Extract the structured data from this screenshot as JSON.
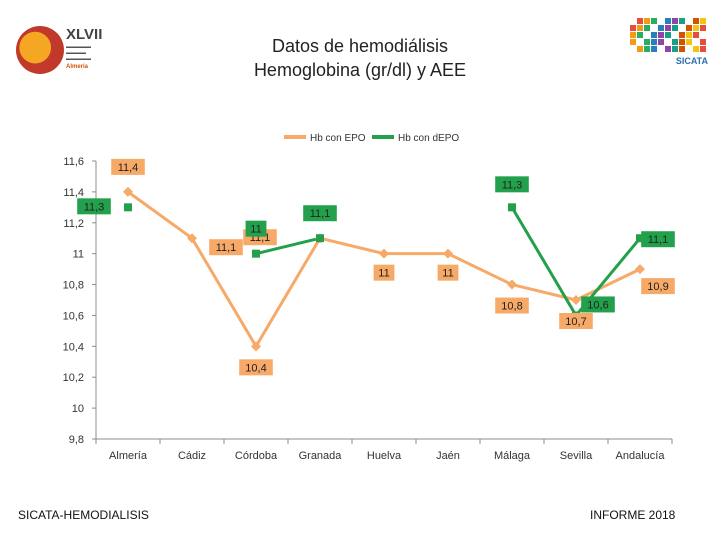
{
  "header": {
    "logo_left": {
      "roman": "XLVII",
      "city": "Almería"
    },
    "logo_right": {
      "brand": "SICATA"
    }
  },
  "footer": {
    "left": "SICATA-HEMODIALISIS",
    "right": "INFORME 2018"
  },
  "colors": {
    "series_epo": "#f7a968",
    "series_depo": "#22a04b"
  },
  "chart_data": {
    "type": "line",
    "title_lines": [
      "Datos de hemodiálisis",
      "Hemoglobina (gr/dl) y AEE"
    ],
    "categories": [
      "Almería",
      "Cádiz",
      "Córdoba",
      "Granada",
      "Huelva",
      "Jaén",
      "Málaga",
      "Sevilla",
      "Andalucía"
    ],
    "ylim": [
      9.8,
      11.6
    ],
    "yticks": [
      9.8,
      10,
      10.2,
      10.4,
      10.6,
      10.8,
      11,
      11.2,
      11.4,
      11.6
    ],
    "ytick_labels": [
      "9,8",
      "10",
      "10,2",
      "10,4",
      "10,6",
      "10,8",
      "11",
      "11,2",
      "11,4",
      "11,6"
    ],
    "legend_position": "top",
    "series": [
      {
        "name": "Hb con EPO",
        "values": [
          11.4,
          11.1,
          10.4,
          11.1,
          11,
          11,
          10.8,
          10.7,
          10.9
        ],
        "labels": [
          "11,4",
          "11,1",
          "10,4",
          "11,1",
          "11",
          "11",
          "10,8",
          "10,7",
          "10,9"
        ]
      },
      {
        "name": "Hb con dEPO",
        "values": [
          11.3,
          null,
          11,
          11.1,
          null,
          null,
          11.3,
          10.6,
          11.1
        ],
        "labels": [
          "11,3",
          null,
          "11",
          "11,1",
          null,
          null,
          "11,3",
          "10,6",
          "11,1"
        ]
      }
    ]
  }
}
